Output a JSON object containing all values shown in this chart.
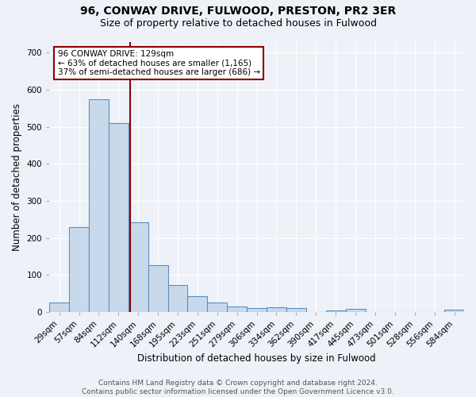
{
  "title1": "96, CONWAY DRIVE, FULWOOD, PRESTON, PR2 3ER",
  "title2": "Size of property relative to detached houses in Fulwood",
  "xlabel": "Distribution of detached houses by size in Fulwood",
  "ylabel": "Number of detached properties",
  "footnote": "Contains HM Land Registry data © Crown copyright and database right 2024.\nContains public sector information licensed under the Open Government Licence v3.0.",
  "bin_labels": [
    "29sqm",
    "57sqm",
    "84sqm",
    "112sqm",
    "140sqm",
    "168sqm",
    "195sqm",
    "223sqm",
    "251sqm",
    "279sqm",
    "306sqm",
    "334sqm",
    "362sqm",
    "390sqm",
    "417sqm",
    "445sqm",
    "473sqm",
    "501sqm",
    "528sqm",
    "556sqm",
    "584sqm"
  ],
  "bar_heights": [
    25,
    230,
    575,
    510,
    242,
    127,
    72,
    42,
    25,
    16,
    10,
    12,
    11,
    0,
    5,
    8,
    0,
    0,
    0,
    0,
    6
  ],
  "bar_color": "#c9d9ec",
  "bar_edge_color": "#5a8fc3",
  "annotation_line_color": "#8b0000",
  "annotation_text_line1": "96 CONWAY DRIVE: 129sqm",
  "annotation_text_line2": "← 63% of detached houses are smaller (1,165)",
  "annotation_text_line3": "37% of semi-detached houses are larger (686) →",
  "annotation_box_color": "white",
  "annotation_box_edge_color": "#8b0000",
  "ylim": [
    0,
    730
  ],
  "yticks": [
    0,
    100,
    200,
    300,
    400,
    500,
    600,
    700
  ],
  "bg_color": "#eef2f8",
  "plot_bg_color": "#eef2f8",
  "grid_color": "white",
  "title1_fontsize": 10,
  "title2_fontsize": 9,
  "axis_label_fontsize": 8.5,
  "tick_fontsize": 7.5,
  "footnote_fontsize": 6.5,
  "annotation_fontsize": 7.5
}
